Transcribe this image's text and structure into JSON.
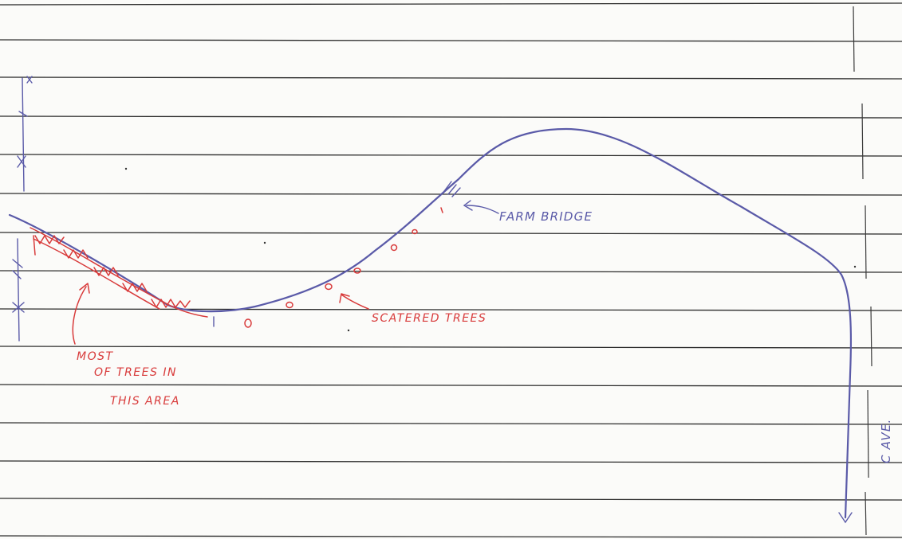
{
  "labels": {
    "farm_bridge": "FARM BRIDGE",
    "scattered_trees": "SCATERED TREES",
    "most_trees_line1": "MOST",
    "most_trees_line2": "OF TREES IN",
    "most_trees_line3": "THIS AREA",
    "avenue": "C AVE."
  },
  "colors": {
    "paper": "#fbfbf9",
    "ruled_line": "#2c2c2c",
    "road_ink": "#5a5aa8",
    "annotation_ink": "#d83a3a"
  }
}
